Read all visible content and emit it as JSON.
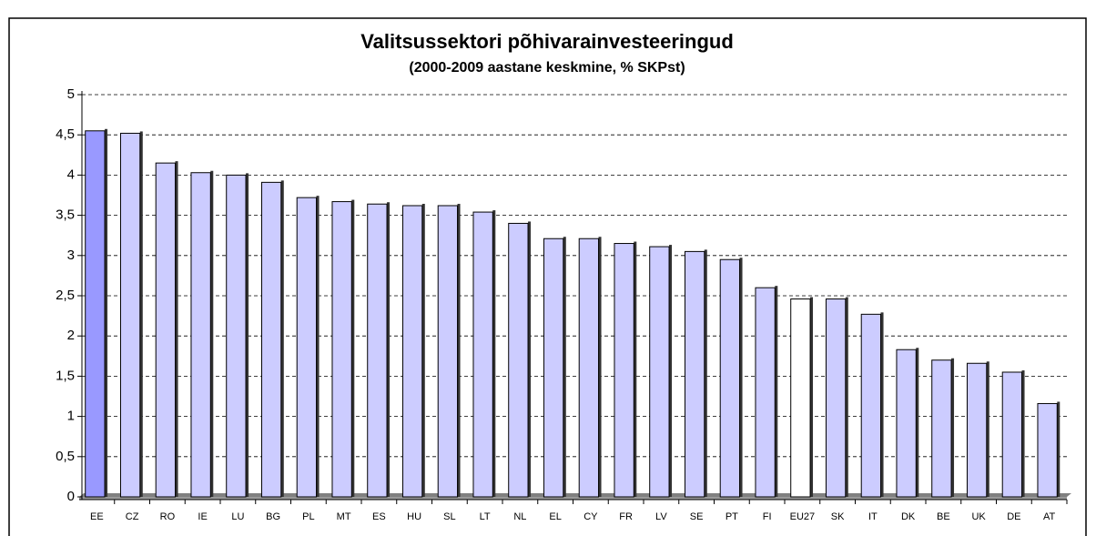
{
  "chart_data": {
    "type": "bar",
    "title": "Valitsussektori põhivarainvesteeringud",
    "subtitle": "(2000-2009 aastane keskmine, % SKPst)",
    "categories": [
      "EE",
      "CZ",
      "RO",
      "IE",
      "LU",
      "BG",
      "PL",
      "MT",
      "ES",
      "HU",
      "SL",
      "LT",
      "NL",
      "EL",
      "CY",
      "FR",
      "LV",
      "SE",
      "PT",
      "FI",
      "EU27",
      "SK",
      "IT",
      "DK",
      "BE",
      "UK",
      "DE",
      "AT"
    ],
    "values": [
      4.55,
      4.52,
      4.15,
      4.03,
      4.0,
      3.91,
      3.72,
      3.67,
      3.64,
      3.62,
      3.62,
      3.54,
      3.4,
      3.21,
      3.21,
      3.15,
      3.11,
      3.05,
      2.95,
      2.6,
      2.46,
      2.46,
      2.27,
      1.83,
      1.7,
      1.66,
      1.55,
      1.16
    ],
    "colors": [
      "#9999ff",
      "#ccccff",
      "#ccccff",
      "#ccccff",
      "#ccccff",
      "#ccccff",
      "#ccccff",
      "#ccccff",
      "#ccccff",
      "#ccccff",
      "#ccccff",
      "#ccccff",
      "#ccccff",
      "#ccccff",
      "#ccccff",
      "#ccccff",
      "#ccccff",
      "#ccccff",
      "#ccccff",
      "#ccccff",
      "#ffffff",
      "#ccccff",
      "#ccccff",
      "#ccccff",
      "#ccccff",
      "#ccccff",
      "#ccccff",
      "#ccccff"
    ],
    "ylim": [
      0,
      5
    ],
    "yticks": [
      0,
      {
        "value": 0.5,
        "label": "0,5"
      },
      1,
      {
        "value": 1.5,
        "label": "1,5"
      },
      2,
      {
        "value": 2.5,
        "label": "2,5"
      },
      3,
      {
        "value": 3.5,
        "label": "3,5"
      },
      4,
      {
        "value": 4.5,
        "label": "4,5"
      },
      5
    ],
    "grid": true
  }
}
